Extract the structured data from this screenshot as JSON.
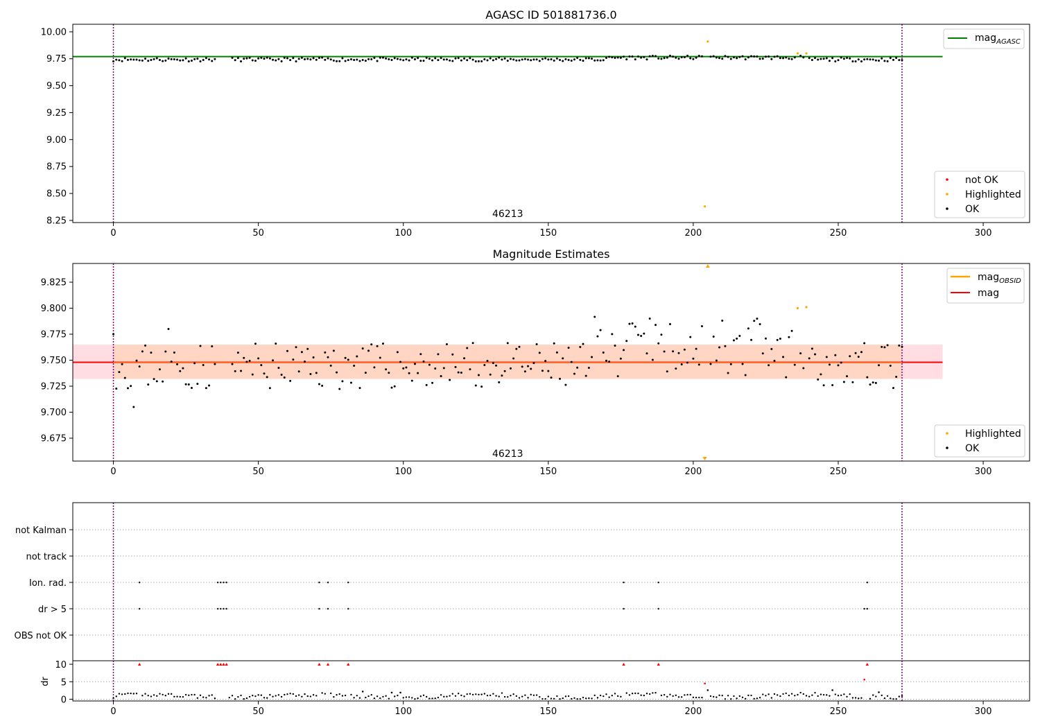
{
  "chart_data": [
    {
      "type": "scatter",
      "title": "AGASC ID 501881736.0",
      "xlim": [
        -14,
        316
      ],
      "ylim": [
        8.23,
        10.07
      ],
      "xticks": [
        0,
        50,
        100,
        150,
        200,
        250,
        300
      ],
      "yticks": [
        10.0,
        9.75,
        9.5,
        9.25,
        9.0,
        8.75,
        8.5,
        8.25
      ],
      "ytick_labels": [
        "10.00",
        "9.75",
        "9.50",
        "9.25",
        "9.00",
        "8.75",
        "8.50",
        "8.25"
      ],
      "vlines": [
        0,
        272
      ],
      "hline": {
        "y": 9.77,
        "x_range": [
          -14,
          286
        ],
        "color": "#008000",
        "label": "mag",
        "label_sub": "AGASC"
      },
      "annotation": {
        "text": "46213",
        "x": 136,
        "y": 8.3
      },
      "legend_markers": [
        {
          "label": "not OK",
          "color": "#ff0000"
        },
        {
          "label": "Highlighted",
          "color": "#ffa500"
        },
        {
          "label": "OK",
          "color": "#000000"
        }
      ],
      "highlighted_points": [
        [
          205,
          9.91
        ],
        [
          204,
          8.38
        ],
        [
          236,
          9.8
        ],
        [
          239,
          9.8
        ]
      ]
    },
    {
      "type": "scatter",
      "title": "Magnitude Estimates",
      "xlim": [
        -14,
        316
      ],
      "ylim": [
        9.653,
        9.843
      ],
      "xticks": [
        0,
        50,
        100,
        150,
        200,
        250,
        300
      ],
      "yticks": [
        9.825,
        9.8,
        9.775,
        9.75,
        9.725,
        9.7,
        9.675
      ],
      "ytick_labels": [
        "9.825",
        "9.800",
        "9.775",
        "9.750",
        "9.725",
        "9.700",
        "9.675"
      ],
      "vlines": [
        0,
        272
      ],
      "band": {
        "y_low": 9.732,
        "y_high": 9.765,
        "x_range": [
          -14,
          286
        ]
      },
      "band_inner": {
        "y_low": 9.732,
        "y_high": 9.765,
        "x_range": [
          0,
          272
        ]
      },
      "hline": {
        "y": 9.748,
        "x_range": [
          -14,
          286
        ],
        "color": "#ff0000",
        "label": "mag"
      },
      "obsid_line": {
        "color": "#ffa500",
        "label": "mag",
        "label_sub": "OBSID"
      },
      "annotation": {
        "text": "46213",
        "x": 136,
        "y": 9.657
      },
      "legend_markers": [
        {
          "label": "Highlighted",
          "color": "#ffa500"
        },
        {
          "label": "OK",
          "color": "#000000"
        }
      ],
      "highlighted_points": [
        [
          236,
          9.8
        ],
        [
          239,
          9.801
        ]
      ],
      "offscale_markers": [
        {
          "x": 205,
          "direction": "up"
        },
        {
          "x": 204,
          "direction": "down"
        }
      ]
    },
    {
      "type": "scatter",
      "title": "",
      "xlim": [
        -14,
        316
      ],
      "xticks": [
        0,
        50,
        100,
        150,
        200,
        250,
        300
      ],
      "vlines": [
        0,
        272
      ],
      "flag_rows": [
        "not Kalman",
        "not track",
        "Ion. rad.",
        "dr > 5",
        "OBS not OK"
      ],
      "flag_points": {
        "Ion. rad.": [
          9,
          36,
          37,
          38,
          39,
          71,
          74,
          81,
          176,
          188,
          260
        ],
        "dr > 5": [
          9,
          36,
          37,
          38,
          39,
          71,
          74,
          81,
          176,
          188,
          259,
          260
        ]
      },
      "dr_panel": {
        "ylabel": "dr",
        "ylim": [
          -0.5,
          11
        ],
        "yticks": [
          0,
          5,
          10
        ],
        "capped_x": [
          9,
          36,
          37,
          38,
          39,
          71,
          74,
          81,
          176,
          188,
          260
        ],
        "outliers": [
          [
            204,
            4.5
          ],
          [
            205,
            2.6
          ],
          [
            259,
            5.6
          ],
          [
            264,
            2.0
          ],
          [
            248,
            2.6
          ],
          [
            86,
            2.2
          ],
          [
            96,
            1.9
          ],
          [
            99,
            1.9
          ]
        ]
      }
    }
  ]
}
